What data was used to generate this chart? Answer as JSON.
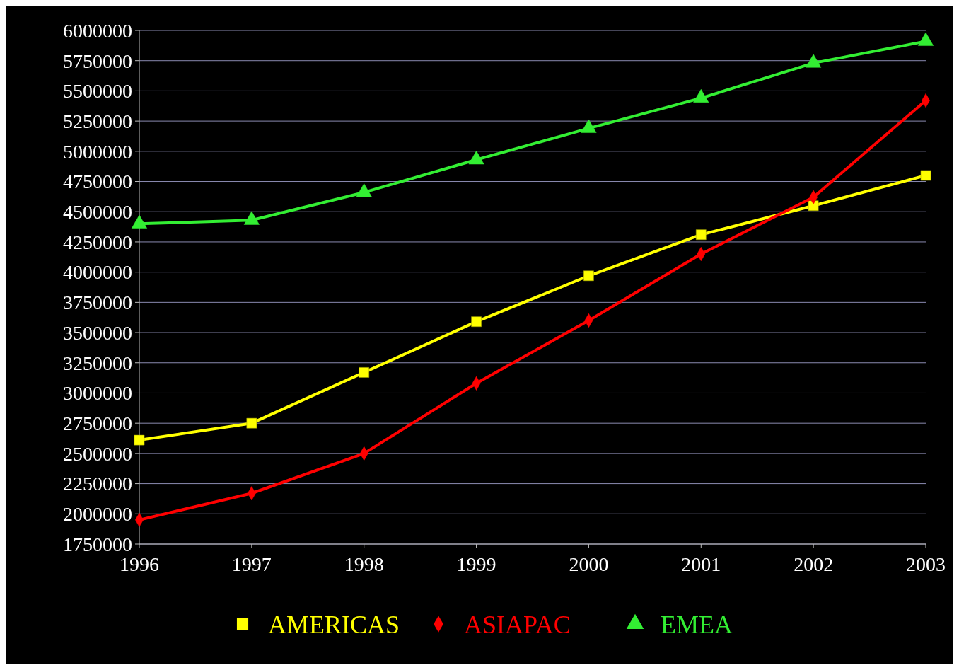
{
  "chart_data": {
    "type": "line",
    "x": [
      1996,
      1997,
      1998,
      1999,
      2000,
      2001,
      2002,
      2003
    ],
    "series": [
      {
        "name": "AMERICAS",
        "color": "#ffff00",
        "marker": "square",
        "values": [
          2610000,
          2750000,
          3170000,
          3590000,
          3970000,
          4310000,
          4550000,
          4800000
        ]
      },
      {
        "name": "ASIAPAC",
        "color": "#ff0000",
        "marker": "diamond",
        "values": [
          1950000,
          2170000,
          2500000,
          3080000,
          3600000,
          4150000,
          4620000,
          5420000
        ]
      },
      {
        "name": "EMEA",
        "color": "#33ee33",
        "marker": "triangle",
        "values": [
          4400000,
          4430000,
          4660000,
          4930000,
          5190000,
          5440000,
          5730000,
          5910000
        ]
      }
    ],
    "xlim": [
      1996,
      2003
    ],
    "xticks": [
      1996,
      1997,
      1998,
      1999,
      2000,
      2001,
      2002,
      2003
    ],
    "ylim": [
      1750000,
      6000000
    ],
    "yticks": [
      1750000,
      2000000,
      2250000,
      2500000,
      2750000,
      3000000,
      3250000,
      3500000,
      3750000,
      4000000,
      4250000,
      4500000,
      4750000,
      5000000,
      5250000,
      5500000,
      5750000,
      6000000
    ],
    "grid": "y",
    "legend": "bottom"
  }
}
